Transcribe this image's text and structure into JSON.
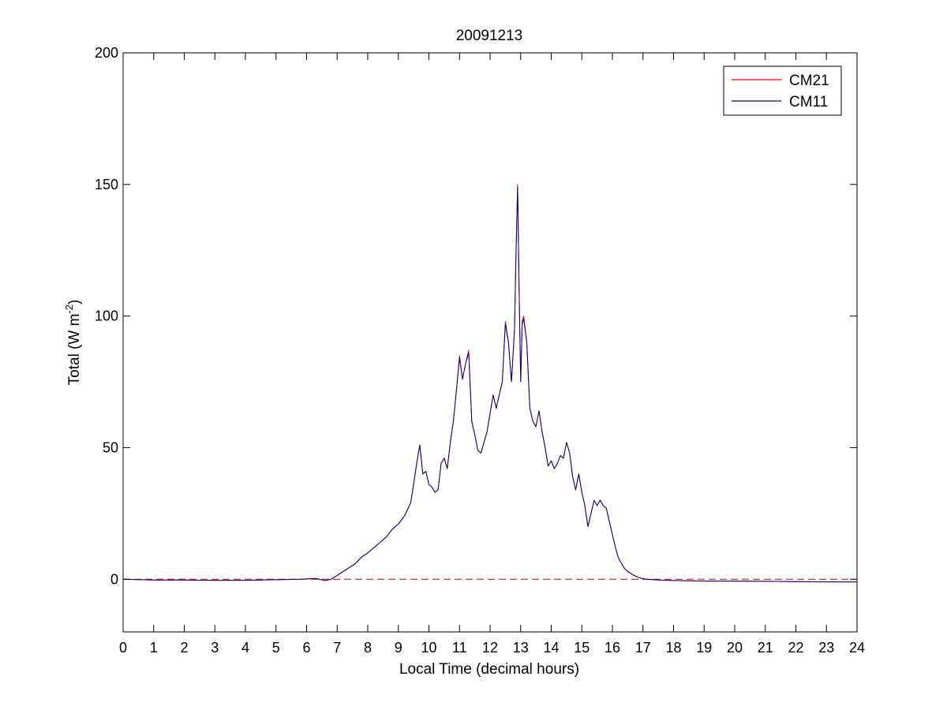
{
  "chart_data": {
    "type": "line",
    "title": "20091213",
    "xlabel": "Local Time (decimal hours)",
    "ylabel": {
      "prefix": "Total (W m",
      "superscript": "-2",
      "suffix": ")"
    },
    "xlim": [
      0,
      24
    ],
    "ylim": [
      -20,
      200
    ],
    "x_ticks": [
      0,
      1,
      2,
      3,
      4,
      5,
      6,
      7,
      8,
      9,
      10,
      11,
      12,
      13,
      14,
      15,
      16,
      17,
      18,
      19,
      20,
      21,
      22,
      23,
      24
    ],
    "y_ticks": [
      0,
      50,
      100,
      150,
      200
    ],
    "grid": false,
    "legend_position": "top-right",
    "reference_line": {
      "y": 0,
      "color": "#cc0000",
      "style": "dashed"
    },
    "colors": {
      "CM21": "#ff0000",
      "CM11": "#00008b"
    },
    "series": [
      {
        "name": "CM21",
        "x": [
          0,
          1,
          2,
          3,
          4,
          5,
          5.8,
          6.3,
          6.6,
          6.8,
          7.0,
          7.2,
          7.4,
          7.6,
          7.8,
          8.0,
          8.2,
          8.4,
          8.6,
          8.8,
          9.0,
          9.2,
          9.4,
          9.5,
          9.6,
          9.7,
          9.8,
          9.9,
          10.0,
          10.1,
          10.2,
          10.3,
          10.4,
          10.5,
          10.6,
          10.7,
          10.8,
          10.9,
          11.0,
          11.1,
          11.2,
          11.3,
          11.4,
          11.5,
          11.6,
          11.7,
          11.8,
          11.9,
          12.0,
          12.1,
          12.2,
          12.3,
          12.4,
          12.5,
          12.6,
          12.7,
          12.8,
          12.85,
          12.9,
          12.95,
          13.0,
          13.05,
          13.1,
          13.2,
          13.3,
          13.4,
          13.5,
          13.6,
          13.7,
          13.8,
          13.9,
          14.0,
          14.1,
          14.2,
          14.3,
          14.4,
          14.5,
          14.6,
          14.7,
          14.8,
          14.9,
          15.0,
          15.1,
          15.2,
          15.3,
          15.4,
          15.5,
          15.6,
          15.7,
          15.8,
          15.9,
          16.0,
          16.1,
          16.2,
          16.3,
          16.4,
          16.5,
          16.7,
          16.9,
          17.1,
          17.5,
          18,
          19,
          20,
          21,
          22,
          23,
          24
        ],
        "values": [
          0,
          -0.3,
          -0.3,
          -0.4,
          -0.4,
          -0.2,
          0,
          0.3,
          -0.5,
          0,
          1.5,
          3,
          4.5,
          6,
          8.5,
          10,
          12,
          14,
          16,
          19,
          21,
          24,
          29,
          36,
          44,
          51,
          40,
          41,
          36,
          35,
          33,
          34,
          44,
          46,
          42,
          52,
          60,
          72,
          85,
          76,
          82,
          87,
          60,
          55,
          49,
          48,
          52,
          56,
          63,
          70,
          65,
          70,
          75,
          98,
          90,
          75,
          95,
          125,
          150,
          110,
          75,
          98,
          100,
          90,
          65,
          60,
          58,
          64,
          56,
          50,
          43,
          45,
          42,
          44,
          47,
          46,
          52,
          48,
          39,
          34,
          40,
          33,
          28,
          20,
          25,
          30,
          28,
          30,
          28,
          27,
          22,
          17,
          12,
          8,
          6,
          4,
          3,
          1.5,
          0.5,
          0,
          -0.3,
          -0.5,
          -0.7,
          -0.7,
          -0.8,
          -0.9,
          -1.0,
          -1.0
        ]
      },
      {
        "name": "CM11",
        "x": [
          0,
          1,
          2,
          3,
          4,
          5,
          5.8,
          6.3,
          6.6,
          6.8,
          7.0,
          7.2,
          7.4,
          7.6,
          7.8,
          8.0,
          8.2,
          8.4,
          8.6,
          8.8,
          9.0,
          9.2,
          9.4,
          9.5,
          9.6,
          9.7,
          9.8,
          9.9,
          10.0,
          10.1,
          10.2,
          10.3,
          10.4,
          10.5,
          10.6,
          10.7,
          10.8,
          10.9,
          11.0,
          11.1,
          11.2,
          11.3,
          11.4,
          11.5,
          11.6,
          11.7,
          11.8,
          11.9,
          12.0,
          12.1,
          12.2,
          12.3,
          12.4,
          12.5,
          12.6,
          12.7,
          12.8,
          12.85,
          12.9,
          12.95,
          13.0,
          13.05,
          13.1,
          13.2,
          13.3,
          13.4,
          13.5,
          13.6,
          13.7,
          13.8,
          13.9,
          14.0,
          14.1,
          14.2,
          14.3,
          14.4,
          14.5,
          14.6,
          14.7,
          14.8,
          14.9,
          15.0,
          15.1,
          15.2,
          15.3,
          15.4,
          15.5,
          15.6,
          15.7,
          15.8,
          15.9,
          16.0,
          16.1,
          16.2,
          16.3,
          16.4,
          16.5,
          16.7,
          16.9,
          17.1,
          17.5,
          18,
          19,
          20,
          21,
          22,
          23,
          24
        ],
        "values": [
          0,
          -0.3,
          -0.3,
          -0.4,
          -0.4,
          -0.2,
          0,
          0.3,
          -0.5,
          0,
          1.5,
          3,
          4.5,
          6,
          8.5,
          10,
          12,
          14,
          16,
          19,
          21,
          24,
          29,
          36,
          44,
          51,
          40,
          41,
          36,
          35,
          33,
          34,
          44,
          46,
          42,
          52,
          60,
          72,
          84,
          76,
          82,
          86,
          60,
          55,
          49,
          48,
          52,
          56,
          63,
          70,
          65,
          70,
          75,
          97,
          90,
          75,
          95,
          124,
          149,
          110,
          75,
          97,
          99,
          90,
          65,
          60,
          58,
          64,
          56,
          50,
          43,
          45,
          42,
          44,
          47,
          46,
          52,
          48,
          39,
          34,
          40,
          33,
          28,
          20,
          25,
          30,
          28,
          30,
          28,
          27,
          22,
          17,
          12,
          8,
          6,
          4,
          3,
          1.5,
          0.5,
          0,
          -0.3,
          -0.5,
          -0.7,
          -0.7,
          -0.8,
          -0.9,
          -1.0,
          -1.0
        ]
      }
    ]
  }
}
